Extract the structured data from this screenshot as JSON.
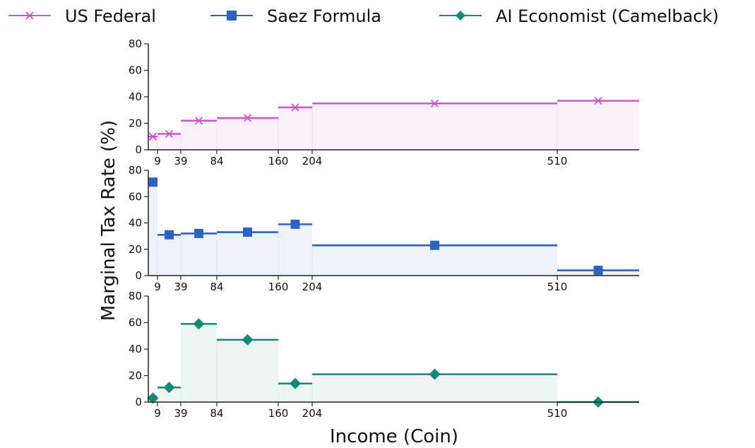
{
  "chart_data": {
    "type": "step",
    "xlabel": "Income (Coin)",
    "ylabel": "Marginal Tax Rate (%)",
    "ylim": [
      0,
      80
    ],
    "yticks": [
      0,
      20,
      40,
      60,
      80
    ],
    "xticks": [
      9,
      39,
      84,
      160,
      204,
      510
    ],
    "bracket_edges": [
      0,
      9,
      39,
      84,
      160,
      204,
      510,
      612
    ],
    "legend": {
      "position": "top"
    },
    "series": [
      {
        "name": "US Federal",
        "color": "#cc55cc",
        "fill": "#fbf0fa",
        "marker": "x",
        "rates": [
          10,
          12,
          22,
          24,
          32,
          35,
          37
        ]
      },
      {
        "name": "Saez Formula",
        "color": "#2d62c2",
        "fill": "#eef3fa",
        "marker": "square",
        "rates": [
          71,
          31,
          32,
          33,
          39,
          23,
          4
        ]
      },
      {
        "name": "AI Economist (Camelback)",
        "color": "#128a78",
        "fill": "#edf6f5",
        "marker": "diamond",
        "rates": [
          3,
          11,
          59,
          47,
          14,
          21,
          0
        ]
      }
    ]
  }
}
